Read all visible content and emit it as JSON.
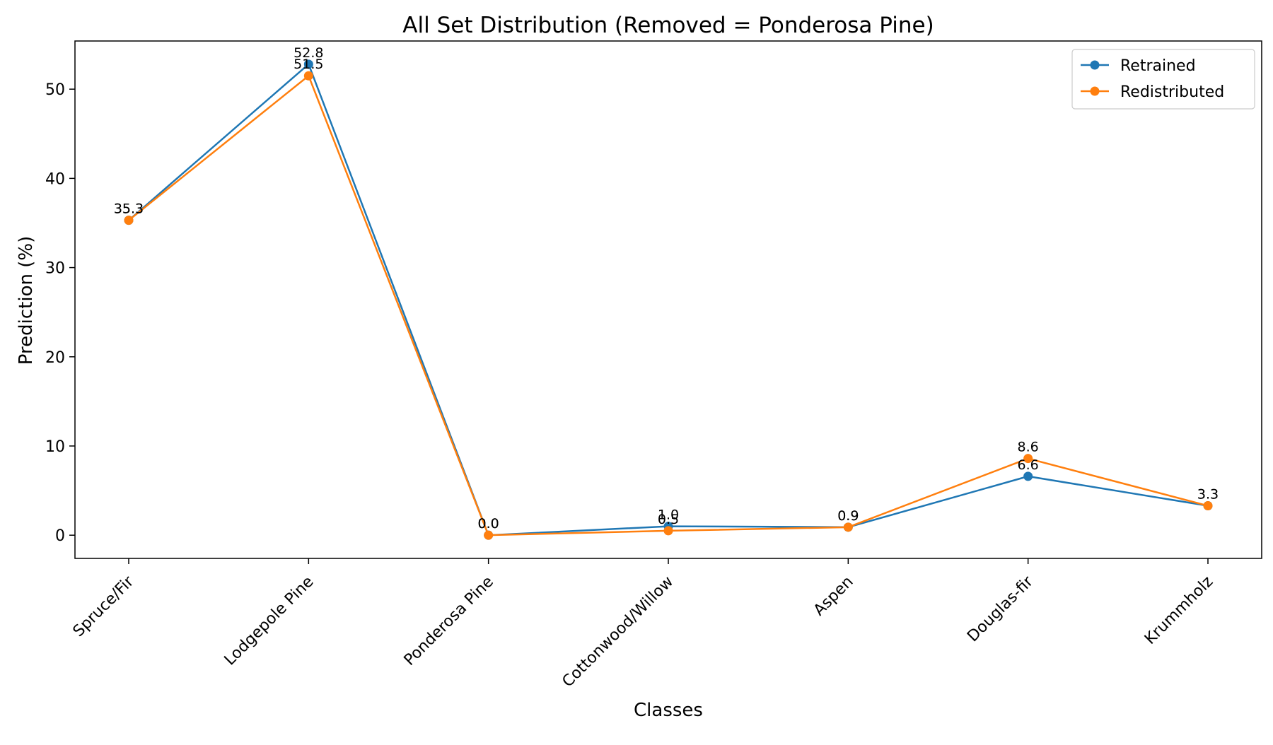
{
  "chart_data": {
    "type": "line",
    "title": "All Set Distribution (Removed = Ponderosa Pine)",
    "xlabel": "Classes",
    "ylabel": "Prediction (%)",
    "categories": [
      "Spruce/Fir",
      "Lodgepole Pine",
      "Ponderosa Pine",
      "Cottonwood/Willow",
      "Aspen",
      "Douglas-fir",
      "Krummholz"
    ],
    "yticks": [
      0,
      10,
      20,
      30,
      40,
      50
    ],
    "ylim": [
      -2.6,
      55.4
    ],
    "grid": false,
    "legend_position": "top-right",
    "series": [
      {
        "name": "Retrained",
        "color": "#1f77b4",
        "values": [
          35.3,
          52.8,
          0.0,
          1.0,
          0.9,
          6.6,
          3.3
        ],
        "labels": [
          "35.3",
          "52.8",
          "0.0",
          "1.0",
          "0.9",
          "6.6",
          "3.3"
        ]
      },
      {
        "name": "Redistributed",
        "color": "#ff7f0e",
        "values": [
          35.3,
          51.5,
          0.0,
          0.5,
          0.9,
          8.6,
          3.3
        ],
        "labels": [
          "35.3",
          "51.5",
          "0.0",
          "0.5",
          "0.9",
          "8.6",
          "3.3"
        ]
      }
    ]
  }
}
